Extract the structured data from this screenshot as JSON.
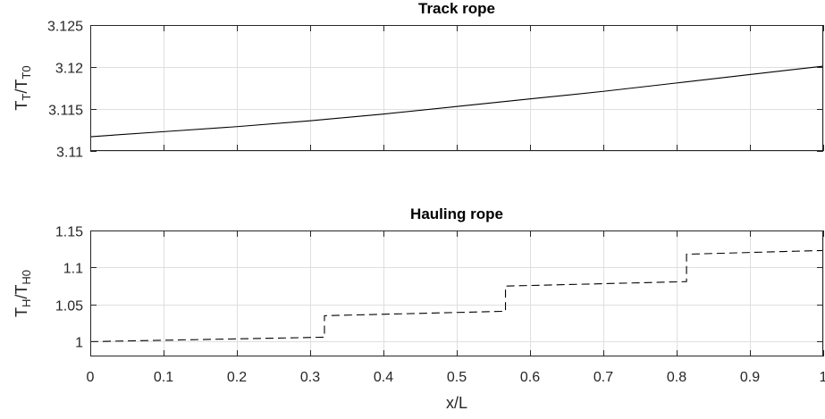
{
  "chart_data": [
    {
      "type": "line",
      "title": "Track rope",
      "ylabel_main": "T",
      "ylabel_sub": "T",
      "ylabel_mid": "/T",
      "ylabel_sub2": "T0",
      "xlim": [
        0,
        1
      ],
      "ylim": [
        3.11,
        3.125
      ],
      "xticks": [
        0,
        0.1,
        0.2,
        0.3,
        0.4,
        0.5,
        0.6,
        0.7,
        0.8,
        0.9,
        1
      ],
      "yticks": [
        "3.11",
        "3.115",
        "3.12",
        "3.125"
      ],
      "yticks_values": [
        3.11,
        3.115,
        3.12,
        3.125
      ],
      "grid": true,
      "series": [
        {
          "line_style": "solid",
          "x": [
            0,
            0.1,
            0.2,
            0.3,
            0.4,
            0.5,
            0.6,
            0.7,
            0.8,
            0.9,
            1.0
          ],
          "y": [
            3.1117,
            3.1123,
            3.1129,
            3.1136,
            3.1144,
            3.1153,
            3.1162,
            3.1171,
            3.1181,
            3.1191,
            3.1201
          ]
        }
      ]
    },
    {
      "type": "line",
      "title": "Hauling rope",
      "ylabel_main": "T",
      "ylabel_sub": "H",
      "ylabel_mid": "/T",
      "ylabel_sub2": "H0",
      "xlabel": "x/L",
      "xlim": [
        0,
        1
      ],
      "ylim": [
        0.98,
        1.15
      ],
      "xticks": [
        0,
        0.1,
        0.2,
        0.3,
        0.4,
        0.5,
        0.6,
        0.7,
        0.8,
        0.9,
        1
      ],
      "xtick_labels": [
        "0",
        "0.1",
        "0.2",
        "0.3",
        "0.4",
        "0.5",
        "0.6",
        "0.7",
        "0.8",
        "0.9",
        "1"
      ],
      "yticks": [
        "1",
        "1.05",
        "1.1",
        "1.15"
      ],
      "yticks_values": [
        1,
        1.05,
        1.1,
        1.15
      ],
      "grid": true,
      "series": [
        {
          "line_style": "dashed",
          "x": [
            0,
            0.3195,
            0.3195,
            0.5665,
            0.5665,
            0.8135,
            0.8135,
            1.0
          ],
          "y": [
            1.0,
            1.006,
            1.035,
            1.041,
            1.075,
            1.081,
            1.118,
            1.123
          ]
        }
      ]
    }
  ]
}
